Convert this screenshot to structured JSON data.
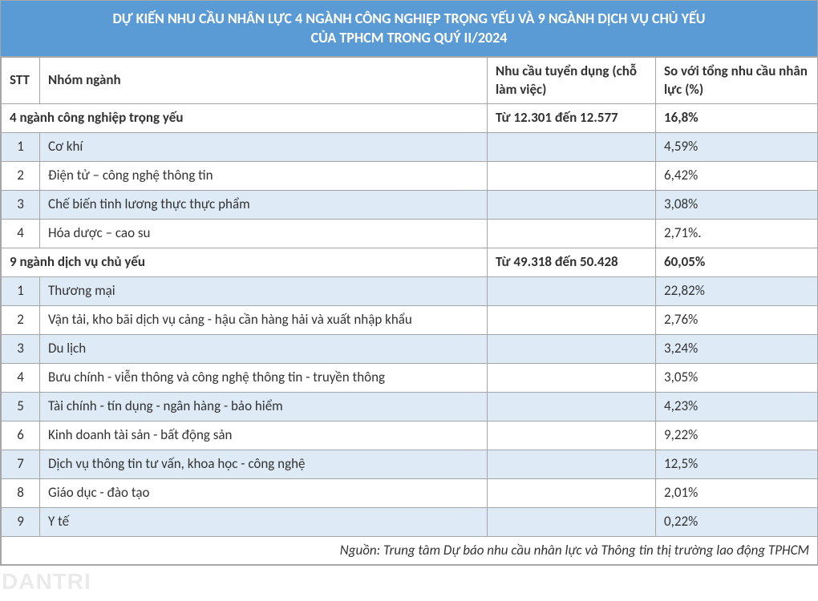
{
  "colors": {
    "header_bg": "#5b9bd5",
    "header_text": "#ffffff",
    "band_bg": "#deebf7",
    "border": "#a6a6a6",
    "text": "#333333",
    "watermark": "#d9d9d9"
  },
  "title_line1": "DỰ KIẾN NHU CẦU NHÂN LỰC 4 NGÀNH CÔNG NGHIỆP TRỌNG YẾU VÀ 9 NGÀNH DỊCH VỤ CHỦ YẾU",
  "title_line2": "CỦA TPHCM TRONG QUÝ II/2024",
  "columns": {
    "stt": "STT",
    "name": "Nhóm ngành",
    "demand": "Nhu cầu tuyển dụng (chỗ làm việc)",
    "pct": "So với tổng nhu cầu nhân lực (%)"
  },
  "section1": {
    "label": "4 ngành công nghiệp trọng yếu",
    "demand": "Từ 12.301 đến 12.577",
    "pct": "16,8%",
    "rows": [
      {
        "stt": "1",
        "name": "Cơ khí",
        "demand": "",
        "pct": "4,59%"
      },
      {
        "stt": "2",
        "name": "Điện tử – công nghệ thông tin",
        "demand": "",
        "pct": "6,42%"
      },
      {
        "stt": "3",
        "name": "Chế biến tinh lương thực thực phẩm",
        "demand": "",
        "pct": "3,08%"
      },
      {
        "stt": "4",
        "name": "Hóa dược – cao su",
        "demand": "",
        "pct": "2,71%."
      }
    ]
  },
  "section2": {
    "label": "9 ngành dịch vụ chủ yếu",
    "demand": "Từ 49.318 đến 50.428",
    "pct": "60,05%",
    "rows": [
      {
        "stt": "1",
        "name": "Thương mại",
        "demand": "",
        "pct": "22,82%"
      },
      {
        "stt": "2",
        "name": "Vận tải, kho bãi dịch vụ cảng - hậu cần hàng hải và xuất nhập khẩu",
        "demand": "",
        "pct": "2,76%"
      },
      {
        "stt": "3",
        "name": "Du lịch",
        "demand": "",
        "pct": "3,24%"
      },
      {
        "stt": "4",
        "name": "Bưu chính - viễn thông và công nghệ thông tin - truyền thông",
        "demand": "",
        "pct": "3,05%"
      },
      {
        "stt": "5",
        "name": "Tài chính - tín dụng - ngân hàng - bảo hiểm",
        "demand": "",
        "pct": "4,23%"
      },
      {
        "stt": "6",
        "name": "Kinh doanh tài sản - bất động sản",
        "demand": "",
        "pct": "9,22%"
      },
      {
        "stt": "7",
        "name": "Dịch vụ thông tin tư vấn, khoa học - công nghệ",
        "demand": "",
        "pct": "12,5%"
      },
      {
        "stt": "8",
        "name": "Giáo dục - đào tạo",
        "demand": "",
        "pct": "2,01%"
      },
      {
        "stt": "9",
        "name": "Y tế",
        "demand": "",
        "pct": "0,22%"
      }
    ]
  },
  "source": "Nguồn: Trung tâm Dự báo nhu cầu nhân lực và Thông tin thị trường lao động TPHCM",
  "watermark": "DANTRI"
}
